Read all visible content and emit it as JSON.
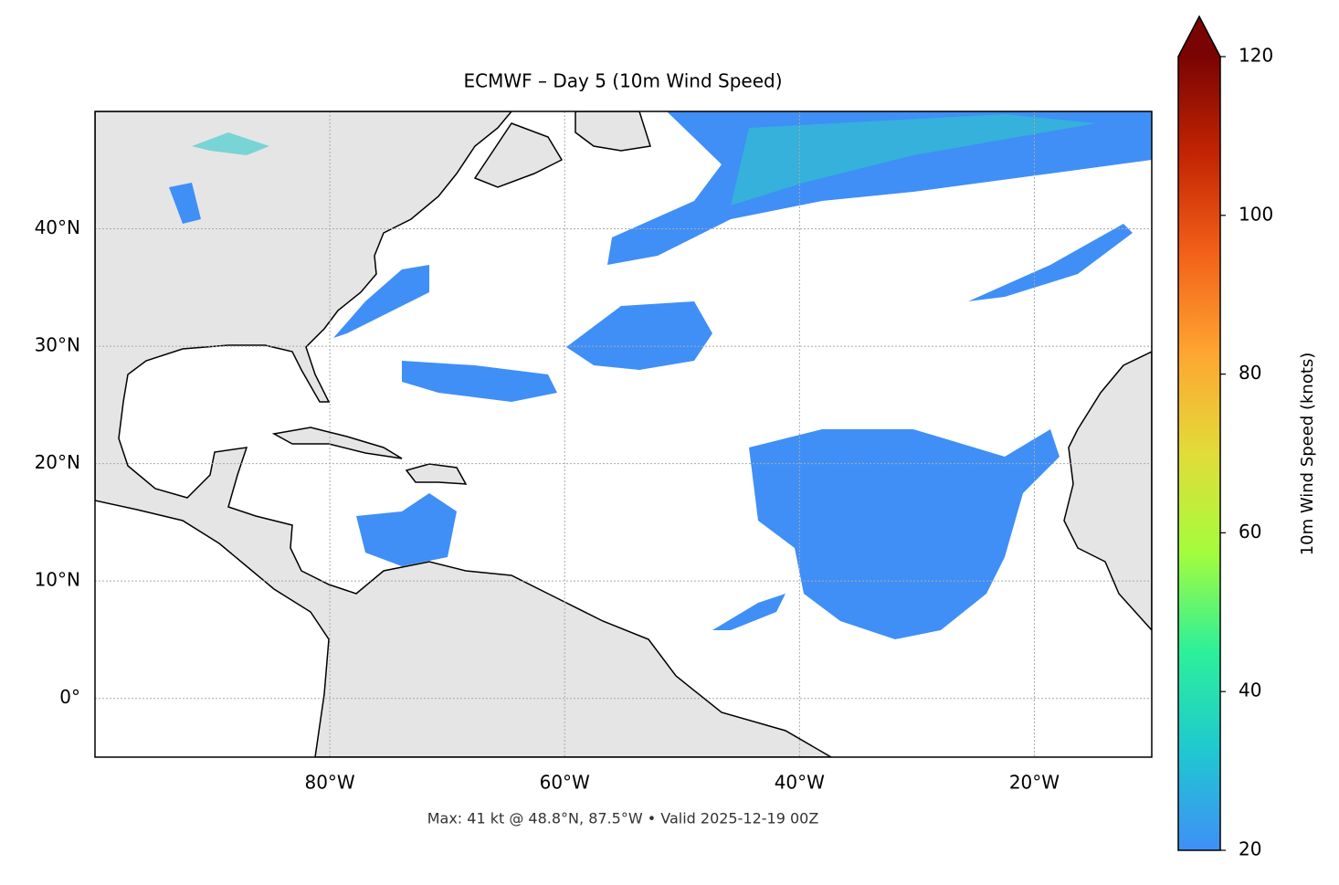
{
  "chart_data": {
    "type": "map",
    "title": "ECMWF – Day 5 (10m Wind Speed)",
    "footer": "Max: 41 kt @ 48.8°N, 87.5°W • Valid 2025-12-19 00Z",
    "xlim": [
      -100,
      -10
    ],
    "ylim": [
      -5,
      50
    ],
    "xticks": [
      {
        "value": -80,
        "label": "80°W"
      },
      {
        "value": -60,
        "label": "60°W"
      },
      {
        "value": -40,
        "label": "40°W"
      },
      {
        "value": -20,
        "label": "20°W"
      }
    ],
    "yticks": [
      {
        "value": 0,
        "label": "0°"
      },
      {
        "value": 10,
        "label": "10°N"
      },
      {
        "value": 20,
        "label": "20°N"
      },
      {
        "value": 30,
        "label": "30°N"
      },
      {
        "value": 40,
        "label": "40°N"
      }
    ],
    "grid": true,
    "colorbar": {
      "label": "10m Wind Speed (knots)",
      "lim": [
        20,
        120
      ],
      "ticks": [
        20,
        40,
        60,
        80,
        100,
        120
      ],
      "colors": [
        "#3f8ff6",
        "#1fc8d0",
        "#2cf09a",
        "#a4fc3c",
        "#e2dc38",
        "#fea632",
        "#f36219",
        "#c42503",
        "#7a0403"
      ]
    }
  }
}
